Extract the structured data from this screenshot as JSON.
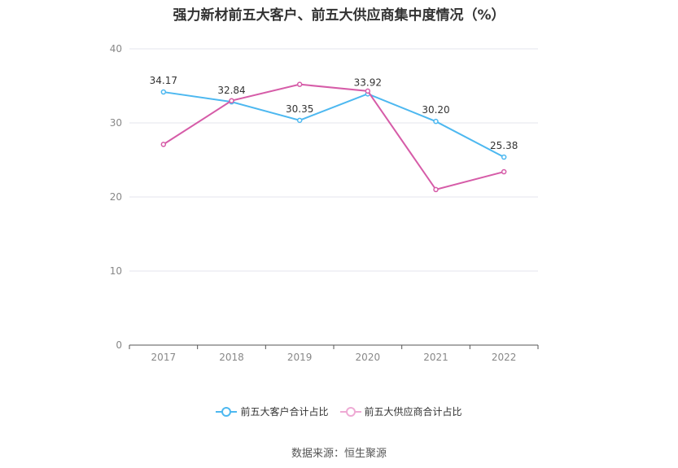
{
  "chart_data": {
    "type": "line",
    "title": "强力新材前五大客户、前五大供应商集中度情况（%）",
    "categories": [
      "2017",
      "2018",
      "2019",
      "2020",
      "2021",
      "2022"
    ],
    "series": [
      {
        "name": "前五大客户合计占比",
        "color": "#4db8f0",
        "values": [
          34.17,
          32.84,
          30.35,
          33.92,
          30.2,
          25.38
        ],
        "labels": [
          "34.17",
          "32.84",
          "30.35",
          "33.92",
          "30.20",
          "25.38"
        ]
      },
      {
        "name": "前五大供应商合计占比",
        "color": "#d65ca8",
        "values": [
          27.1,
          33.0,
          35.2,
          34.3,
          21.0,
          23.4
        ]
      }
    ],
    "ylim": [
      0,
      40
    ],
    "yticks": [
      "0",
      "10",
      "20",
      "30",
      "40"
    ],
    "grid": true,
    "legend": "bottom"
  },
  "source": "数据来源：恒生聚源"
}
